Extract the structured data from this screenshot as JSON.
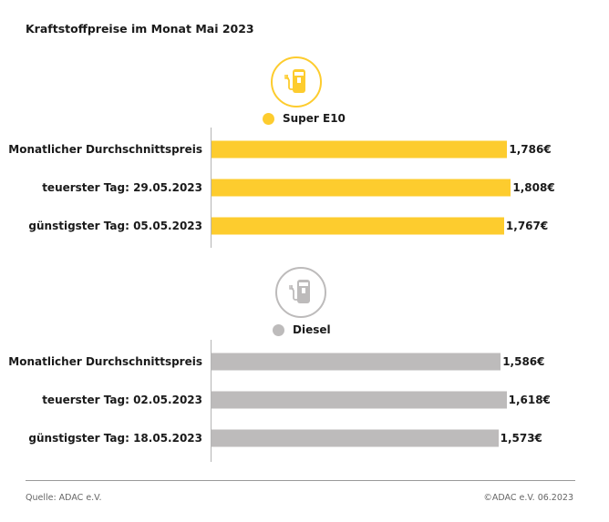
{
  "title": "Kraftstoffpreise im Monat Mai 2023",
  "chart_data": [
    {
      "type": "bar",
      "orientation": "horizontal",
      "series_name": "Super E10",
      "icon": "fuel-pump-icon",
      "color": "#FDCC2E",
      "categories": [
        "Monatlicher Durchschnittspreis",
        "teuerster Tag: 29.05.2023",
        "günstigster Tag: 05.05.2023"
      ],
      "values": [
        1.786,
        1.808,
        1.767
      ],
      "data_labels": [
        "1,786€",
        "1,808€",
        "1,767€"
      ],
      "xlim": [
        0,
        1.85
      ],
      "grid": false
    },
    {
      "type": "bar",
      "orientation": "horizontal",
      "series_name": "Diesel",
      "icon": "fuel-pump-icon",
      "color": "#BDBBBB",
      "categories": [
        "Monatlicher Durchschnittspreis",
        "teuerster Tag: 02.05.2023",
        "günstigster Tag: 18.05.2023"
      ],
      "values": [
        1.586,
        1.618,
        1.573
      ],
      "data_labels": [
        "1,586€",
        "1,618€",
        "1,573€"
      ],
      "xlim": [
        0,
        1.68
      ],
      "grid": false
    }
  ],
  "footer": {
    "source": "Quelle: ADAC e.V.",
    "copyright": "©ADAC e.V. 06.2023"
  }
}
